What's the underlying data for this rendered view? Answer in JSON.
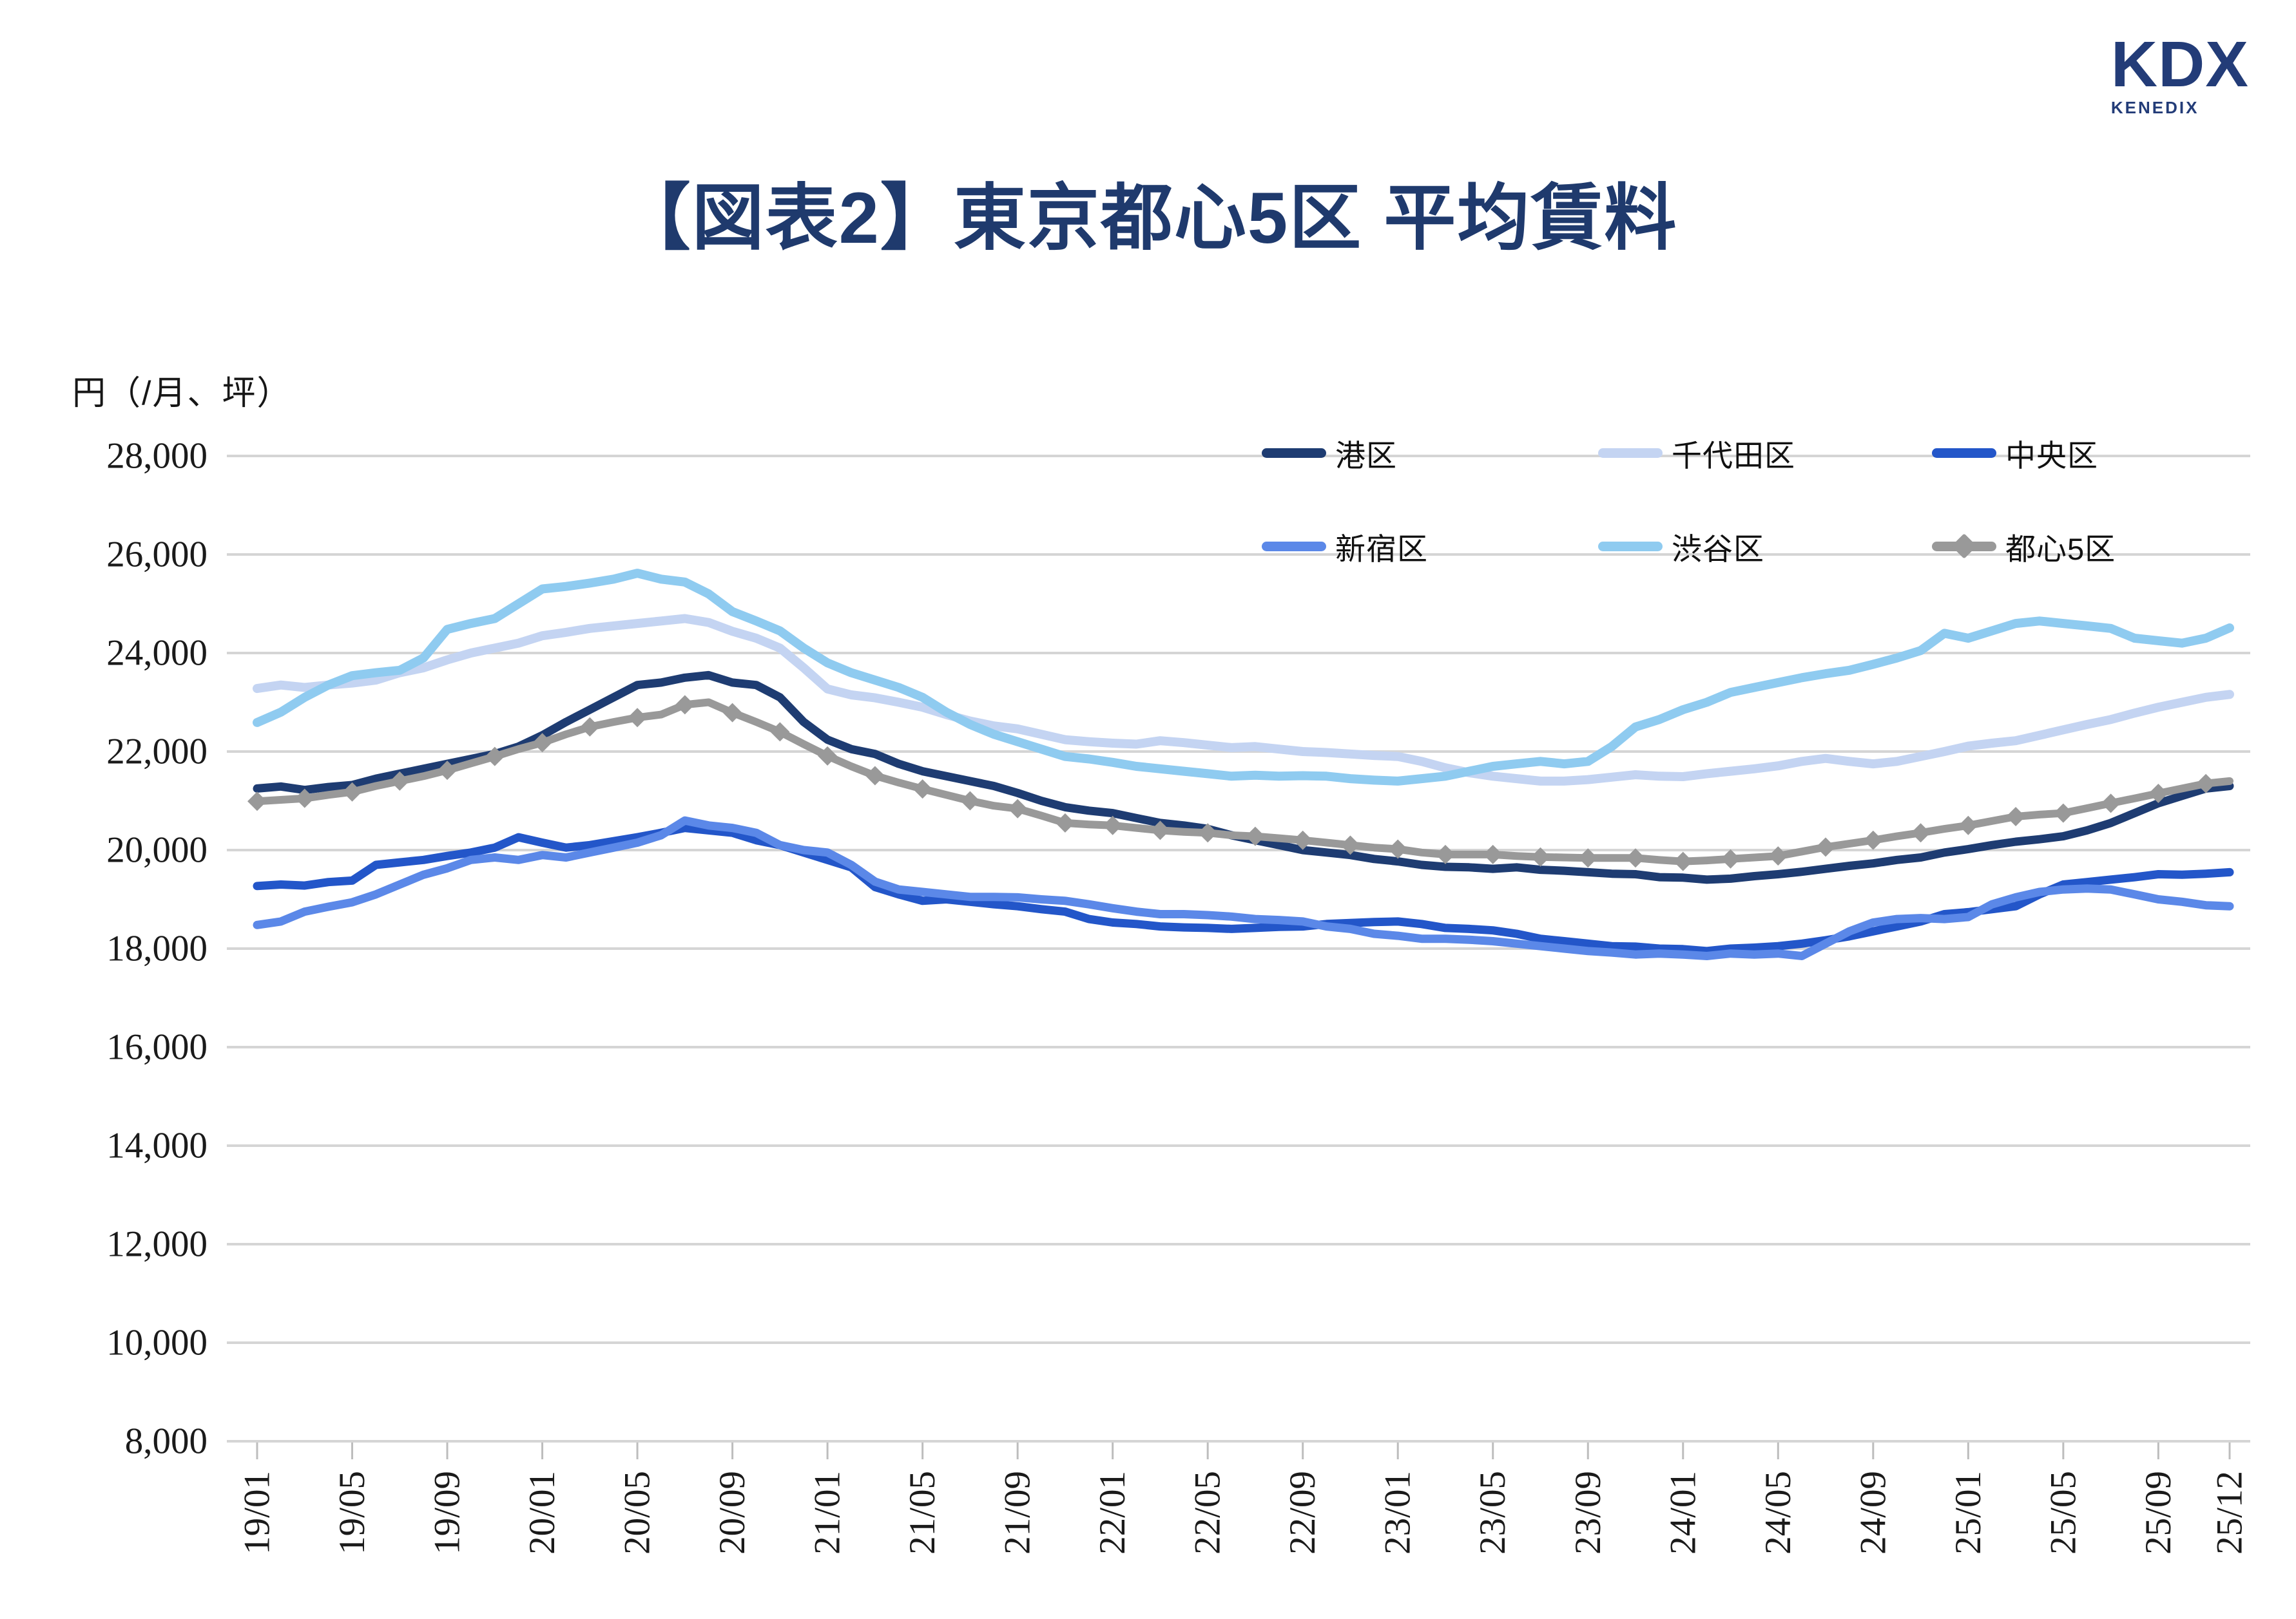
{
  "logo": {
    "brand": "KDX",
    "sub": "KENEDIX"
  },
  "title": "【図表2】東京都心5区 平均賃料",
  "y_axis_unit": "円（/月、坪）",
  "chart_data": {
    "type": "line",
    "title": "【図表2】東京都心5区 平均賃料",
    "ylabel": "円（/月、坪）",
    "ylim": [
      8000,
      28000
    ],
    "y_ticks": [
      8000,
      10000,
      12000,
      14000,
      16000,
      18000,
      20000,
      22000,
      24000,
      26000,
      28000
    ],
    "y_tick_labels": [
      "8,000",
      "10,000",
      "12,000",
      "14,000",
      "16,000",
      "18,000",
      "20,000",
      "22,000",
      "24,000",
      "26,000",
      "28,000"
    ],
    "grid": true,
    "legend_position": "top-right-two-rows",
    "x_start": "19/01",
    "x_end": "25/12",
    "x_interval": "monthly",
    "x_tick_labels": [
      "19/01",
      "19/05",
      "19/09",
      "20/01",
      "20/05",
      "20/09",
      "21/01",
      "21/05",
      "21/09",
      "22/01",
      "22/05",
      "22/09",
      "23/01",
      "23/05",
      "23/09",
      "24/01",
      "24/05",
      "24/09",
      "25/01",
      "25/05",
      "25/09",
      "25/12"
    ],
    "x_tick_month_index": [
      0,
      4,
      8,
      12,
      16,
      20,
      24,
      28,
      32,
      36,
      40,
      44,
      48,
      52,
      56,
      60,
      64,
      68,
      72,
      76,
      80,
      83
    ],
    "legend_rows": [
      [
        "港区",
        "千代田区",
        "中央区"
      ],
      [
        "新宿区",
        "渋谷区",
        "都心5区"
      ]
    ],
    "series": [
      {
        "name": "港区",
        "color": "#1E3C72",
        "marker": "none",
        "width": 13,
        "values": [
          21250,
          21290,
          21220,
          21280,
          21320,
          21450,
          21550,
          21650,
          21750,
          21850,
          21950,
          22100,
          22330,
          22600,
          22850,
          23100,
          23350,
          23400,
          23500,
          23550,
          23400,
          23350,
          23100,
          22600,
          22240,
          22050,
          21950,
          21750,
          21600,
          21500,
          21400,
          21300,
          21160,
          21000,
          20870,
          20800,
          20750,
          20650,
          20550,
          20500,
          20430,
          20300,
          20200,
          20100,
          20000,
          19950,
          19900,
          19820,
          19770,
          19700,
          19660,
          19650,
          19620,
          19650,
          19600,
          19580,
          19550,
          19520,
          19510,
          19450,
          19440,
          19400,
          19420,
          19470,
          19510,
          19560,
          19620,
          19680,
          19730,
          19800,
          19850,
          19950,
          20020,
          20100,
          20170,
          20220,
          20280,
          20400,
          20550,
          20750,
          20950,
          21100,
          21250,
          21300
        ]
      },
      {
        "name": "千代田区",
        "color": "#C4D4F2",
        "marker": "none",
        "width": 14,
        "values": [
          23280,
          23350,
          23300,
          23350,
          23390,
          23450,
          23600,
          23700,
          23860,
          24000,
          24100,
          24200,
          24350,
          24420,
          24500,
          24550,
          24600,
          24650,
          24700,
          24620,
          24440,
          24300,
          24100,
          23700,
          23270,
          23150,
          23090,
          23000,
          22900,
          22750,
          22620,
          22520,
          22460,
          22350,
          22240,
          22200,
          22170,
          22150,
          22220,
          22180,
          22130,
          22080,
          22100,
          22050,
          22000,
          21980,
          21950,
          21920,
          21900,
          21800,
          21670,
          21570,
          21500,
          21450,
          21400,
          21400,
          21430,
          21480,
          21530,
          21500,
          21490,
          21550,
          21600,
          21650,
          21710,
          21800,
          21860,
          21800,
          21750,
          21800,
          21900,
          22000,
          22110,
          22170,
          22220,
          22330,
          22440,
          22550,
          22650,
          22780,
          22900,
          23000,
          23100,
          23160
        ]
      },
      {
        "name": "中央区",
        "color": "#2356C9",
        "marker": "none",
        "width": 13,
        "values": [
          19270,
          19300,
          19280,
          19350,
          19380,
          19700,
          19750,
          19800,
          19880,
          19950,
          20050,
          20260,
          20150,
          20050,
          20100,
          20180,
          20260,
          20350,
          20450,
          20400,
          20350,
          20200,
          20100,
          19950,
          19800,
          19650,
          19250,
          19100,
          18970,
          19000,
          18950,
          18900,
          18860,
          18800,
          18750,
          18600,
          18530,
          18500,
          18450,
          18430,
          18420,
          18400,
          18420,
          18440,
          18450,
          18500,
          18520,
          18540,
          18550,
          18500,
          18420,
          18400,
          18370,
          18300,
          18200,
          18150,
          18100,
          18050,
          18040,
          18000,
          17990,
          17950,
          18000,
          18020,
          18050,
          18100,
          18170,
          18250,
          18350,
          18450,
          18550,
          18700,
          18740,
          18800,
          18860,
          19100,
          19300,
          19350,
          19400,
          19450,
          19510,
          19500,
          19520,
          19550
        ]
      },
      {
        "name": "新宿区",
        "color": "#5B88E8",
        "marker": "none",
        "width": 13,
        "values": [
          18480,
          18550,
          18750,
          18850,
          18940,
          19100,
          19300,
          19500,
          19630,
          19800,
          19850,
          19800,
          19900,
          19850,
          19950,
          20050,
          20150,
          20300,
          20600,
          20500,
          20450,
          20350,
          20100,
          20000,
          19950,
          19700,
          19360,
          19200,
          19150,
          19100,
          19050,
          19050,
          19040,
          19000,
          18970,
          18900,
          18820,
          18750,
          18700,
          18700,
          18680,
          18650,
          18600,
          18580,
          18550,
          18450,
          18400,
          18300,
          18260,
          18200,
          18200,
          18180,
          18150,
          18100,
          18050,
          18000,
          17950,
          17920,
          17880,
          17900,
          17880,
          17850,
          17900,
          17880,
          17900,
          17850,
          18100,
          18350,
          18530,
          18600,
          18620,
          18600,
          18640,
          18900,
          19040,
          19150,
          19200,
          19220,
          19200,
          19100,
          19000,
          18950,
          18880,
          18860
        ]
      },
      {
        "name": "渋谷区",
        "color": "#8FCBF0",
        "marker": "none",
        "width": 14,
        "values": [
          22590,
          22800,
          23100,
          23350,
          23540,
          23600,
          23650,
          23900,
          24480,
          24600,
          24700,
          25000,
          25300,
          25350,
          25420,
          25500,
          25620,
          25500,
          25440,
          25200,
          24840,
          24650,
          24450,
          24100,
          23800,
          23600,
          23450,
          23300,
          23100,
          22800,
          22550,
          22350,
          22200,
          22050,
          21900,
          21850,
          21780,
          21700,
          21650,
          21600,
          21550,
          21500,
          21520,
          21500,
          21510,
          21500,
          21450,
          21420,
          21400,
          21450,
          21500,
          21600,
          21700,
          21750,
          21800,
          21750,
          21800,
          22100,
          22500,
          22650,
          22850,
          23000,
          23200,
          23300,
          23400,
          23500,
          23580,
          23650,
          23770,
          23900,
          24050,
          24400,
          24300,
          24450,
          24600,
          24650,
          24600,
          24550,
          24500,
          24300,
          24250,
          24200,
          24300,
          24510
        ]
      },
      {
        "name": "都心5区",
        "color": "#999999",
        "marker": "diamond",
        "width": 12,
        "values": [
          20990,
          21020,
          21050,
          21120,
          21180,
          21300,
          21400,
          21500,
          21620,
          21760,
          21900,
          22050,
          22180,
          22350,
          22500,
          22600,
          22690,
          22750,
          22950,
          23000,
          22790,
          22600,
          22400,
          22150,
          21910,
          21700,
          21510,
          21370,
          21240,
          21120,
          21000,
          20900,
          20840,
          20700,
          20550,
          20520,
          20500,
          20450,
          20400,
          20370,
          20350,
          20300,
          20280,
          20240,
          20200,
          20150,
          20100,
          20050,
          20020,
          19950,
          19910,
          19910,
          19910,
          19880,
          19860,
          19850,
          19840,
          19840,
          19840,
          19800,
          19770,
          19790,
          19820,
          19850,
          19880,
          19970,
          20060,
          20130,
          20200,
          20280,
          20350,
          20430,
          20500,
          20590,
          20680,
          20720,
          20750,
          20850,
          20950,
          21050,
          21150,
          21250,
          21350,
          21400
        ]
      }
    ]
  },
  "colors": {
    "title": "#1F3A6D",
    "logo": "#233C78",
    "gridline": "#D5D5D5",
    "tick": "#BDBDBD",
    "axis_text": "#1A1A1A"
  }
}
